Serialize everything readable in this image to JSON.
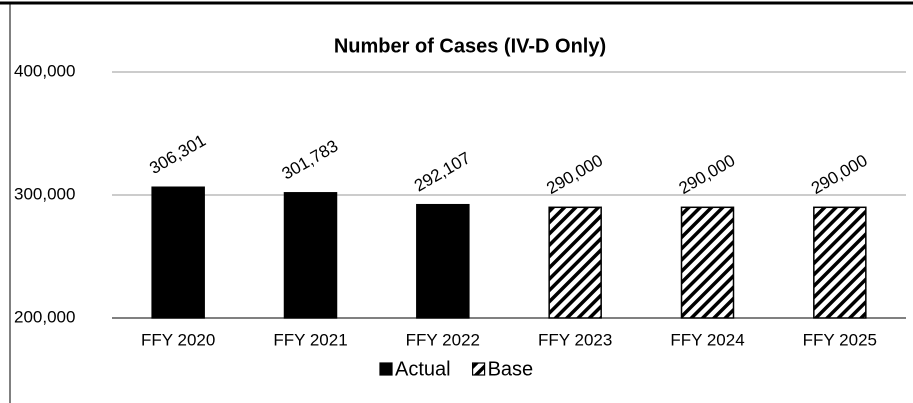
{
  "chart_data": {
    "type": "bar",
    "title": "Number of Cases (IV-D Only)",
    "categories": [
      "FFY 2020",
      "FFY 2021",
      "FFY 2022",
      "FFY 2023",
      "FFY 2024",
      "FFY 2025"
    ],
    "series": [
      {
        "name": "Actual",
        "color": "#000000",
        "pattern": "solid",
        "values": [
          306301,
          301783,
          292107,
          null,
          null,
          null
        ],
        "value_labels": [
          "306,301",
          "301,783",
          "292,107",
          null,
          null,
          null
        ]
      },
      {
        "name": "Base",
        "color": "#000000",
        "pattern": "hatch",
        "values": [
          null,
          null,
          null,
          290000,
          290000,
          290000
        ],
        "value_labels": [
          null,
          null,
          null,
          "290,000",
          "290,000",
          "290,000"
        ]
      }
    ],
    "ylim": [
      200000,
      400000
    ],
    "yticks": [
      {
        "value": 200000,
        "label": "200,000"
      },
      {
        "value": 300000,
        "label": "300,000"
      },
      {
        "value": 400000,
        "label": "400,000"
      }
    ],
    "grid": true,
    "legend": "bottom"
  }
}
